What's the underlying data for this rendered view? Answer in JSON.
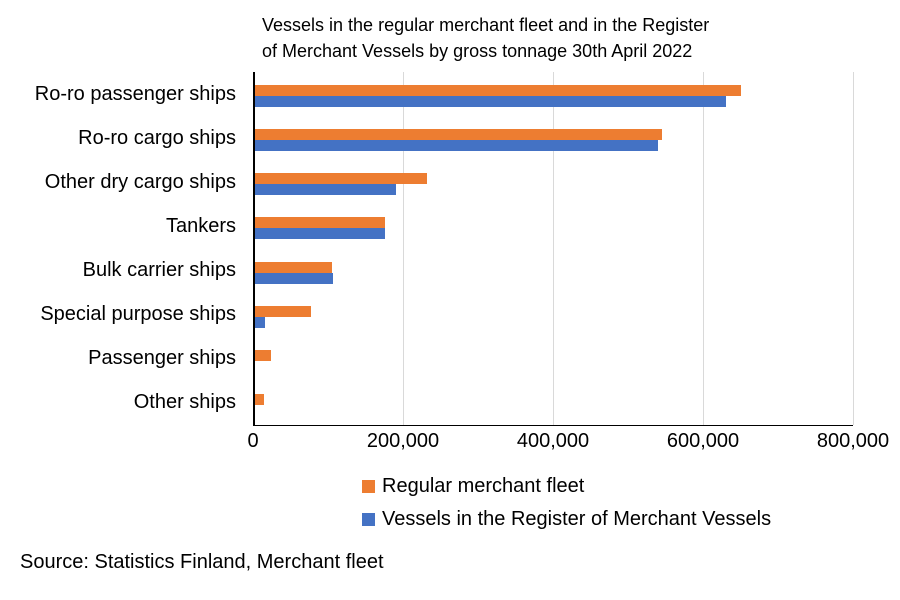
{
  "title": {
    "line1": "Vessels in the regular merchant fleet and in the Register",
    "line2": "of Merchant Vessels by gross tonnage 30th April 2022"
  },
  "source": "Source: Statistics Finland, Merchant fleet",
  "colors": {
    "fleet_orange": "#ED7D31",
    "register_blue": "#4472C4",
    "gridline": "#D9D9D9",
    "axis": "#000000"
  },
  "chart_data": {
    "type": "bar",
    "orientation": "horizontal",
    "title": "Vessels in the regular merchant fleet and in the Register of Merchant Vessels by gross tonnage 30th April 2022",
    "categories": [
      "Ro-ro passenger ships",
      "Ro-ro cargo ships",
      "Other dry cargo ships",
      "Tankers",
      "Bulk carrier ships",
      "Special purpose ships",
      "Passenger ships",
      "Other ships"
    ],
    "series": [
      {
        "name": "Regular merchant fleet",
        "color": "#ED7D31",
        "values": [
          650000,
          545000,
          232000,
          176000,
          105000,
          77000,
          24000,
          14000
        ]
      },
      {
        "name": "Vessels in the Register of Merchant Vessels",
        "color": "#4472C4",
        "values": [
          630000,
          540000,
          190000,
          176000,
          107000,
          16000,
          2500,
          500
        ]
      }
    ],
    "xlabel": "",
    "ylabel": "",
    "xlim": [
      0,
      800000
    ],
    "x_tick_values": [
      0,
      200000,
      400000,
      600000,
      800000
    ],
    "x_tick_labels": [
      "0",
      "200,000",
      "400,000",
      "600,000",
      "800,000"
    ],
    "grid": "vertical",
    "legend_position": "bottom-left"
  }
}
